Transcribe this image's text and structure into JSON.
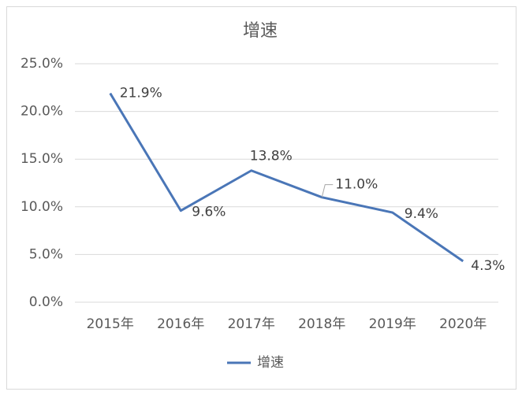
{
  "chart_data": {
    "type": "line",
    "title": "增速",
    "categories": [
      "2015年",
      "2016年",
      "2017年",
      "2018年",
      "2019年",
      "2020年"
    ],
    "series": [
      {
        "name": "增速",
        "color": "#4a76b7",
        "values": [
          21.9,
          9.6,
          13.8,
          11.0,
          9.4,
          4.3
        ],
        "value_labels": [
          "21.9%",
          "9.6%",
          "13.8%",
          "11.0%",
          "9.4%",
          "4.3%"
        ]
      }
    ],
    "ylim": [
      0,
      25
    ],
    "yticks": [
      {
        "value": 0,
        "label": "0.0%"
      },
      {
        "value": 5,
        "label": "5.0%"
      },
      {
        "value": 10,
        "label": "10.0%"
      },
      {
        "value": 15,
        "label": "15.0%"
      },
      {
        "value": 20,
        "label": "20.0%"
      },
      {
        "value": 25,
        "label": "25.0%"
      }
    ],
    "grid": true,
    "legend": "bottom"
  }
}
